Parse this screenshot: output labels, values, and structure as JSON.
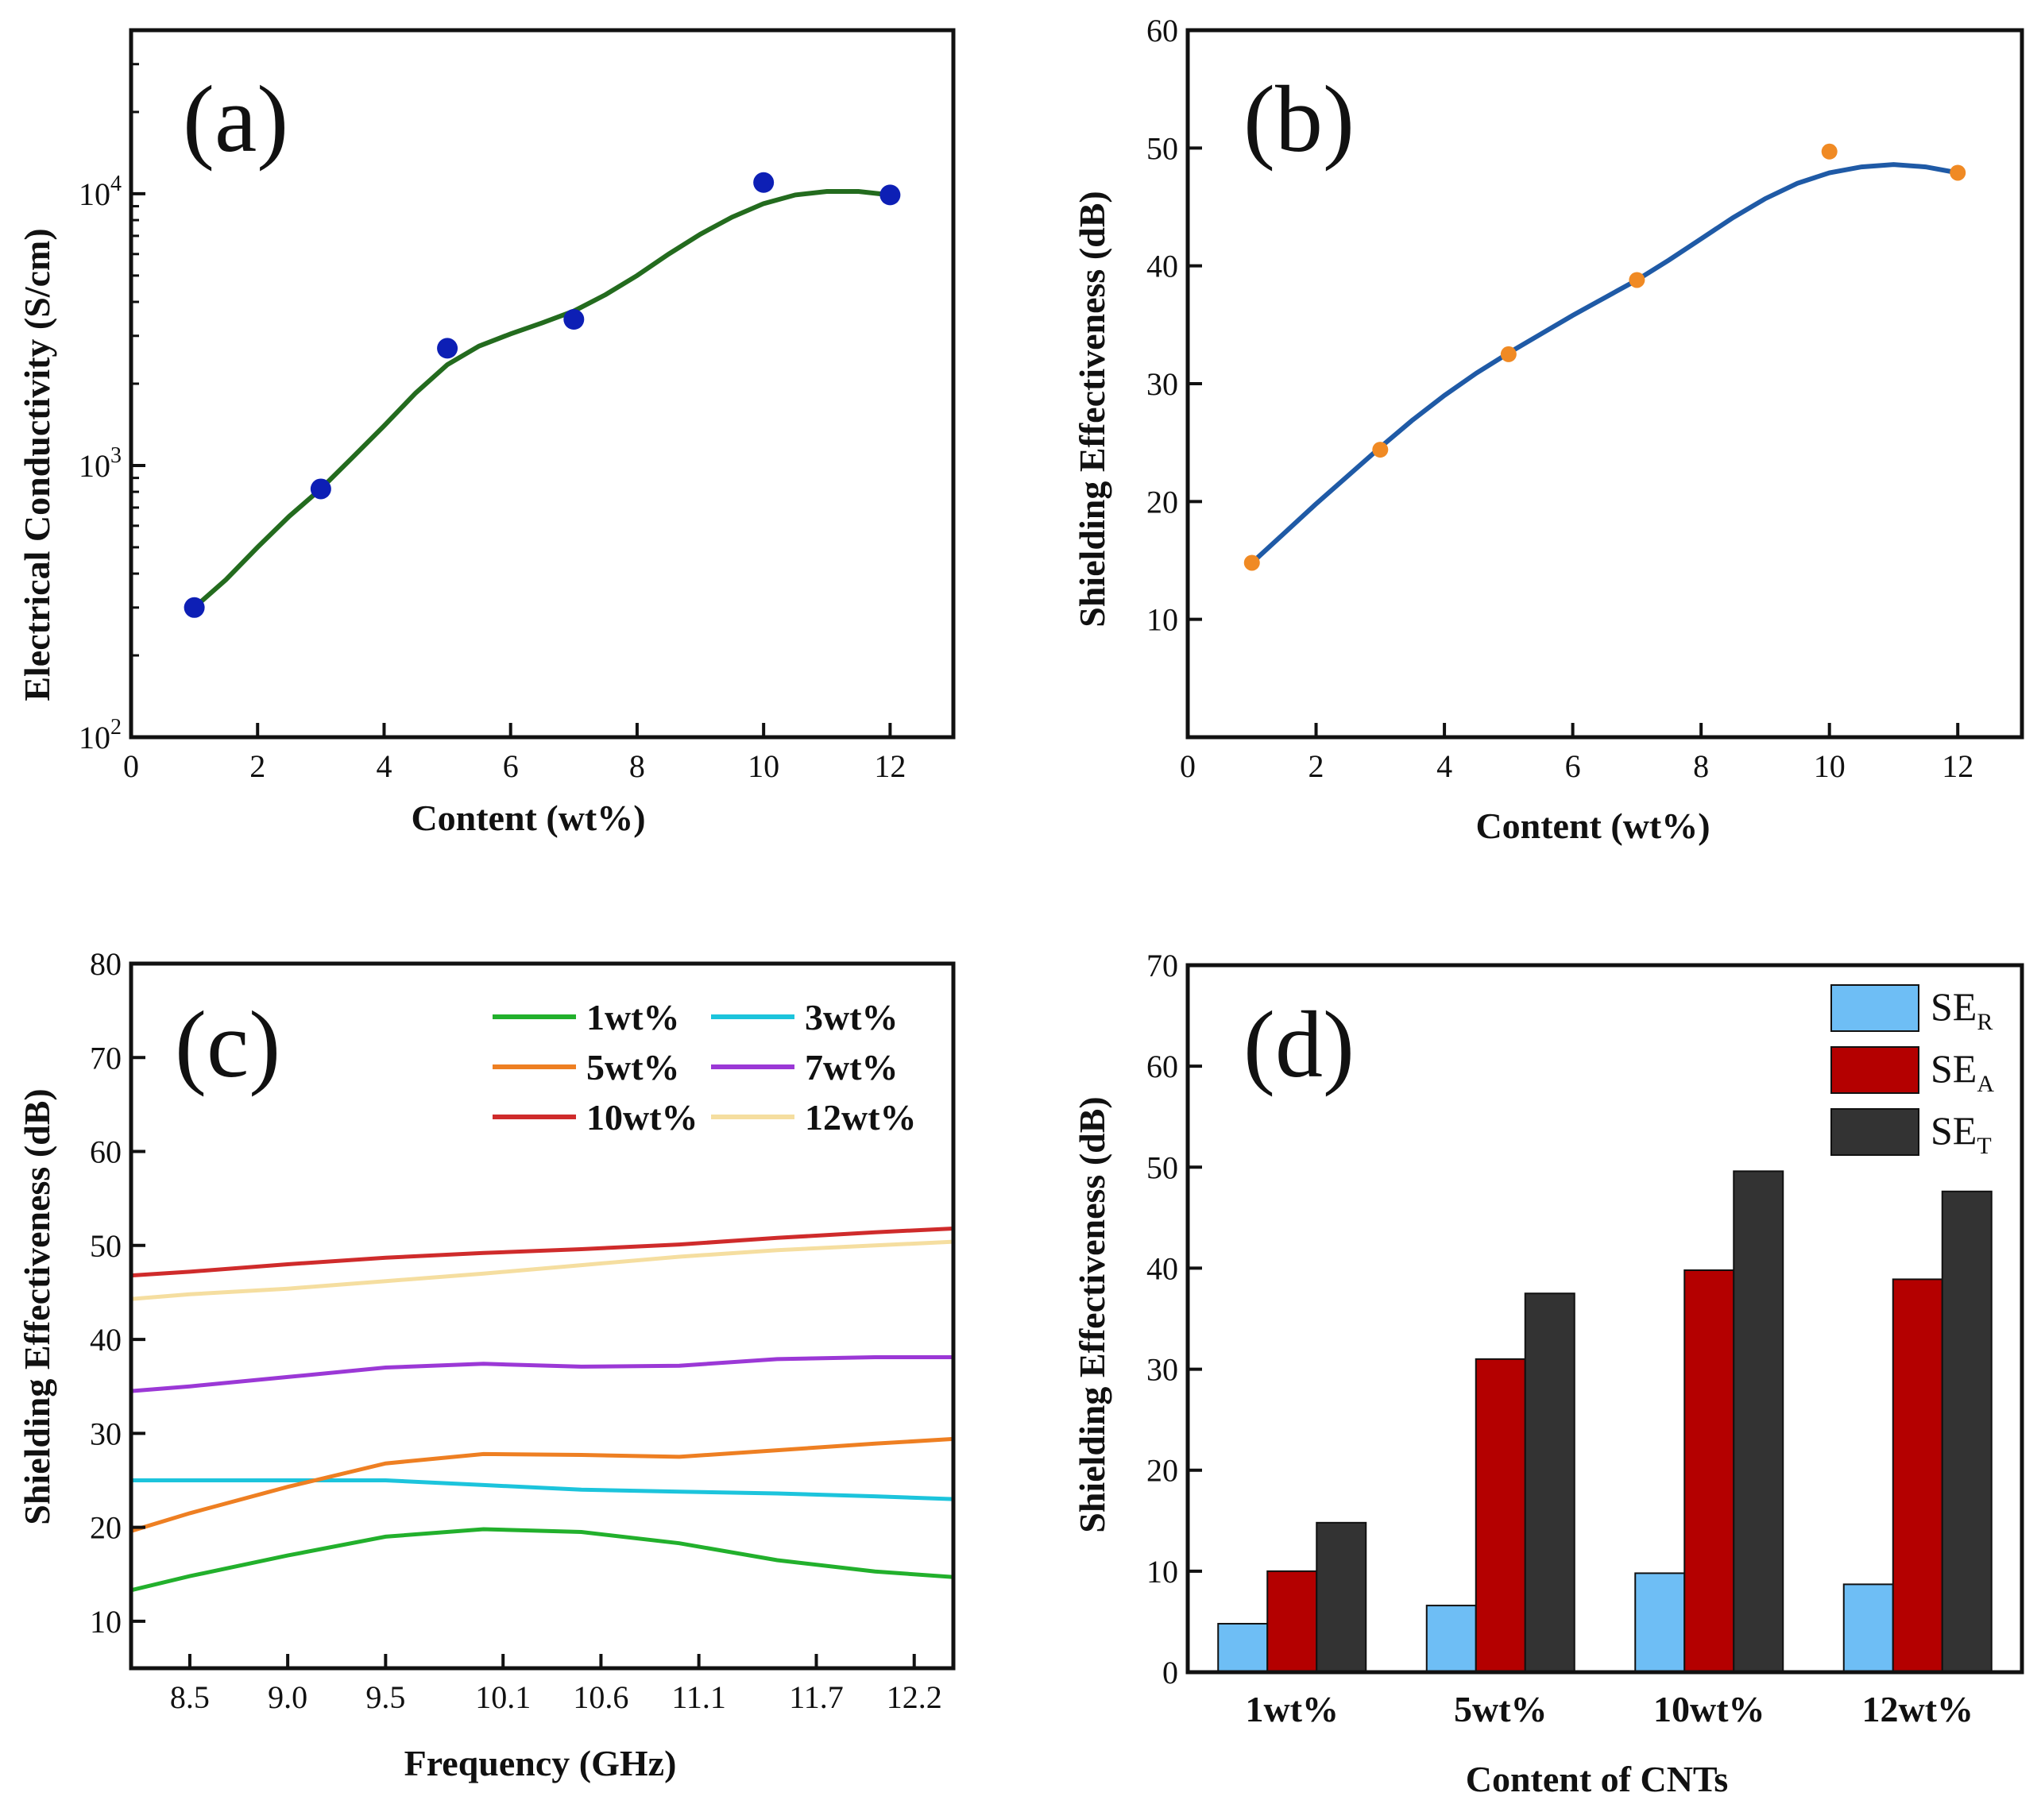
{
  "chart_data": [
    {
      "panel": "(a)",
      "type": "scatter",
      "xlabel": "Content (wt%)",
      "ylabel": "Electrical Conductivity (S/cm)",
      "yscale": "log",
      "xlim": [
        0,
        13
      ],
      "ylim": [
        100,
        40000
      ],
      "xticks": [
        "0",
        "2",
        "4",
        "6",
        "8",
        "10",
        "12"
      ],
      "xtick_values": [
        0,
        2,
        4,
        6,
        8,
        10,
        12
      ],
      "yticks": [
        {
          "value": 100,
          "base": "10",
          "exp": "2"
        },
        {
          "value": 1000,
          "base": "10",
          "exp": "3"
        },
        {
          "value": 10000,
          "base": "10",
          "exp": "4"
        }
      ],
      "points": {
        "x": [
          1,
          3,
          5,
          7,
          10,
          12
        ],
        "y": [
          300,
          820,
          2700,
          3450,
          11000,
          9900
        ]
      },
      "fit_curve": {
        "x": [
          1,
          1.5,
          2,
          2.5,
          3,
          3.5,
          4,
          4.5,
          5,
          5.5,
          6,
          6.5,
          7,
          7.5,
          8,
          8.5,
          9,
          9.5,
          10,
          10.5,
          11,
          11.5,
          12
        ],
        "y": [
          300,
          380,
          500,
          650,
          820,
          1070,
          1400,
          1850,
          2350,
          2750,
          3050,
          3350,
          3700,
          4250,
          5000,
          6000,
          7100,
          8200,
          9200,
          9900,
          10200,
          10200,
          9900
        ]
      },
      "colors": {
        "points": "#0d1fb5",
        "curve": "#236b1e"
      }
    },
    {
      "panel": "(b)",
      "type": "scatter",
      "xlabel": "Content (wt%)",
      "ylabel": "Shielding Effectiveness (dB)",
      "xlim": [
        0,
        13
      ],
      "ylim": [
        0,
        60
      ],
      "xticks": [
        "0",
        "2",
        "4",
        "6",
        "8",
        "10",
        "12"
      ],
      "xtick_values": [
        0,
        2,
        4,
        6,
        8,
        10,
        12
      ],
      "yticks": [
        "10",
        "20",
        "30",
        "40",
        "50",
        "60"
      ],
      "ytick_values": [
        10,
        20,
        30,
        40,
        50,
        60
      ],
      "points": {
        "x": [
          1,
          3,
          5,
          7,
          10,
          12
        ],
        "y": [
          14.8,
          24.4,
          32.5,
          38.8,
          49.7,
          47.9
        ]
      },
      "fit_curve": {
        "x": [
          1,
          1.5,
          2,
          2.5,
          3,
          3.5,
          4,
          4.5,
          5,
          5.5,
          6,
          6.5,
          7,
          7.5,
          8,
          8.5,
          9,
          9.5,
          10,
          10.5,
          11,
          11.5,
          12
        ],
        "y": [
          14.8,
          17.3,
          19.8,
          22.2,
          24.6,
          26.9,
          29.0,
          30.9,
          32.6,
          34.2,
          35.8,
          37.3,
          38.8,
          40.5,
          42.3,
          44.1,
          45.7,
          47.0,
          47.9,
          48.4,
          48.6,
          48.4,
          47.9
        ]
      },
      "colors": {
        "points": "#f08a24",
        "curve": "#1f5aa6"
      }
    },
    {
      "panel": "(c)",
      "type": "line",
      "xlabel": "Frequency (GHz)",
      "ylabel": "Shielding Effectiveness (dB)",
      "xlim": [
        8.2,
        12.4
      ],
      "ylim": [
        5,
        80
      ],
      "xticks": [
        "8.5",
        "9.0",
        "9.5",
        "10.1",
        "10.6",
        "11.1",
        "11.7",
        "12.2"
      ],
      "xtick_values": [
        8.5,
        9.0,
        9.5,
        10.1,
        10.6,
        11.1,
        11.7,
        12.2
      ],
      "yticks": [
        "10",
        "20",
        "30",
        "40",
        "50",
        "60",
        "70",
        "80"
      ],
      "ytick_values": [
        10,
        20,
        30,
        40,
        50,
        60,
        70,
        80
      ],
      "x": [
        8.2,
        8.5,
        9.0,
        9.5,
        10.0,
        10.5,
        11.0,
        11.5,
        12.0,
        12.4
      ],
      "series": [
        {
          "name": "1wt%",
          "color": "#22b02c",
          "values": [
            13.3,
            14.8,
            17.0,
            19.0,
            19.8,
            19.5,
            18.3,
            16.5,
            15.3,
            14.7
          ]
        },
        {
          "name": "3wt%",
          "color": "#1cc4dc",
          "values": [
            25.0,
            25.0,
            25.0,
            25.0,
            24.5,
            24.0,
            23.8,
            23.6,
            23.3,
            23.0
          ]
        },
        {
          "name": "5wt%",
          "color": "#ee7f22",
          "values": [
            19.6,
            21.5,
            24.3,
            26.8,
            27.8,
            27.7,
            27.5,
            28.2,
            28.9,
            29.4
          ]
        },
        {
          "name": "7wt%",
          "color": "#9b38d6",
          "values": [
            34.5,
            35.0,
            36.0,
            37.0,
            37.4,
            37.1,
            37.2,
            37.9,
            38.1,
            38.1
          ]
        },
        {
          "name": "10wt%",
          "color": "#cf2b2b",
          "values": [
            46.8,
            47.2,
            48.0,
            48.7,
            49.2,
            49.6,
            50.1,
            50.8,
            51.4,
            51.8
          ]
        },
        {
          "name": "12wt%",
          "color": "#f5dea0",
          "values": [
            44.3,
            44.8,
            45.4,
            46.2,
            47.0,
            47.9,
            48.8,
            49.5,
            50.0,
            50.4
          ]
        }
      ]
    },
    {
      "panel": "(d)",
      "type": "bar",
      "xlabel": "Content of CNTs",
      "ylabel": "Shielding Effectiveness (dB)",
      "ylim": [
        0,
        70
      ],
      "yticks": [
        "0",
        "10",
        "20",
        "30",
        "40",
        "50",
        "60",
        "70"
      ],
      "ytick_values": [
        0,
        10,
        20,
        30,
        40,
        50,
        60,
        70
      ],
      "categories": [
        "1wt%",
        "5wt%",
        "10wt%",
        "12wt%"
      ],
      "series": [
        {
          "name": "SE",
          "subscript": "R",
          "color": "#6ebef5",
          "values": [
            4.8,
            6.6,
            9.8,
            8.7
          ]
        },
        {
          "name": "SE",
          "subscript": "A",
          "color": "#b40000",
          "values": [
            10.0,
            31.0,
            39.8,
            38.9
          ]
        },
        {
          "name": "SE",
          "subscript": "T",
          "color": "#333333",
          "values": [
            14.8,
            37.5,
            49.6,
            47.6
          ]
        }
      ]
    }
  ]
}
